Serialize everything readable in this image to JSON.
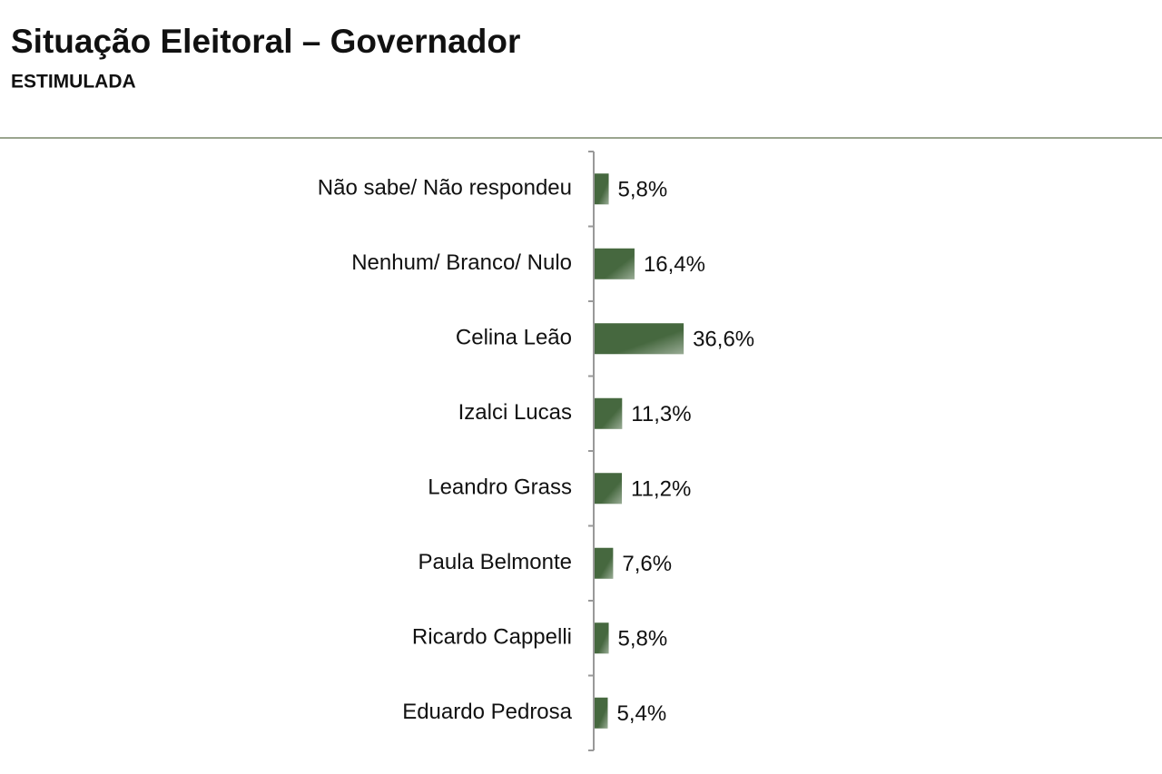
{
  "chart_data": {
    "type": "bar",
    "orientation": "horizontal",
    "title": "Situação Eleitoral – Governador",
    "subtitle": "ESTIMULADA",
    "categories": [
      "Não sabe/ Não respondeu",
      "Nenhum/ Branco/ Nulo",
      "Celina Leão",
      "Izalci Lucas",
      "Leandro Grass",
      "Paula Belmonte",
      "Ricardo Cappelli",
      "Eduardo Pedrosa"
    ],
    "values": [
      5.8,
      16.4,
      36.6,
      11.3,
      11.2,
      7.6,
      5.8,
      5.4
    ],
    "value_labels": [
      "5,8%",
      "16,4%",
      "36,6%",
      "11,3%",
      "11,2%",
      "7,6%",
      "5,8%",
      "5,4%"
    ],
    "color": "#46683f"
  }
}
